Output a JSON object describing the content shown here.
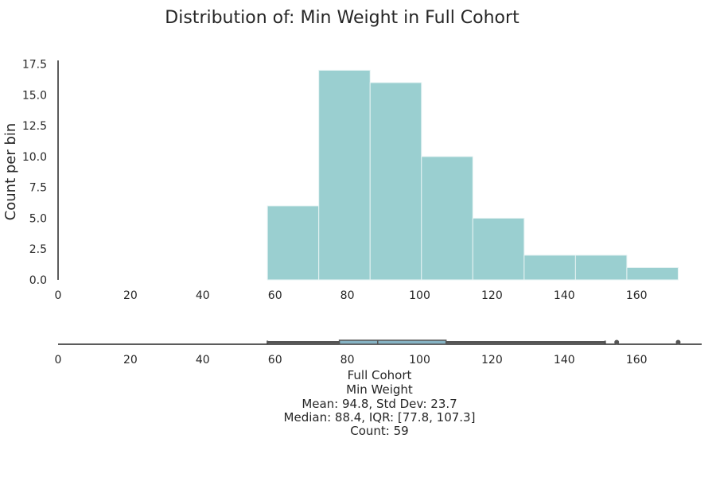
{
  "chart_data": {
    "type": "histogram",
    "title": "Distribution of: Min Weight in Full Cohort",
    "ylabel": "Count per bin",
    "xlabel": "",
    "xlim": [
      0,
      178
    ],
    "ylim": [
      0,
      17.8
    ],
    "x_ticks": [
      0,
      20,
      40,
      60,
      80,
      100,
      120,
      140,
      160
    ],
    "y_ticks": [
      0.0,
      2.5,
      5.0,
      7.5,
      10.0,
      12.5,
      15.0,
      17.5
    ],
    "y_tick_labels": [
      "0.0",
      "2.5",
      "5.0",
      "7.5",
      "10.0",
      "12.5",
      "15.0",
      "17.5"
    ],
    "bar_color": "#9acfd0",
    "bar_edge_color": "#e6f3f3",
    "bins": [
      {
        "x0": 57.9,
        "x1": 72.1,
        "count": 6
      },
      {
        "x0": 72.1,
        "x1": 86.3,
        "count": 17
      },
      {
        "x0": 86.3,
        "x1": 100.5,
        "count": 16
      },
      {
        "x0": 100.5,
        "x1": 114.7,
        "count": 10
      },
      {
        "x0": 114.7,
        "x1": 128.9,
        "count": 5
      },
      {
        "x0": 128.9,
        "x1": 143.1,
        "count": 2
      },
      {
        "x0": 143.1,
        "x1": 157.3,
        "count": 2
      },
      {
        "x0": 157.3,
        "x1": 171.5,
        "count": 1
      }
    ],
    "boxplot": {
      "whisker_low": 57.9,
      "q1": 77.8,
      "median": 88.4,
      "q3": 107.3,
      "whisker_high": 151.3,
      "outliers": [
        154.5,
        171.5
      ],
      "box_color": "#86b3c4",
      "line_color": "#555555"
    }
  },
  "stats": {
    "lines": [
      "Full Cohort",
      "Min Weight",
      "Mean: 94.8, Std Dev: 23.7",
      "Median: 88.4, IQR: [77.8, 107.3]",
      "Count: 59"
    ]
  }
}
